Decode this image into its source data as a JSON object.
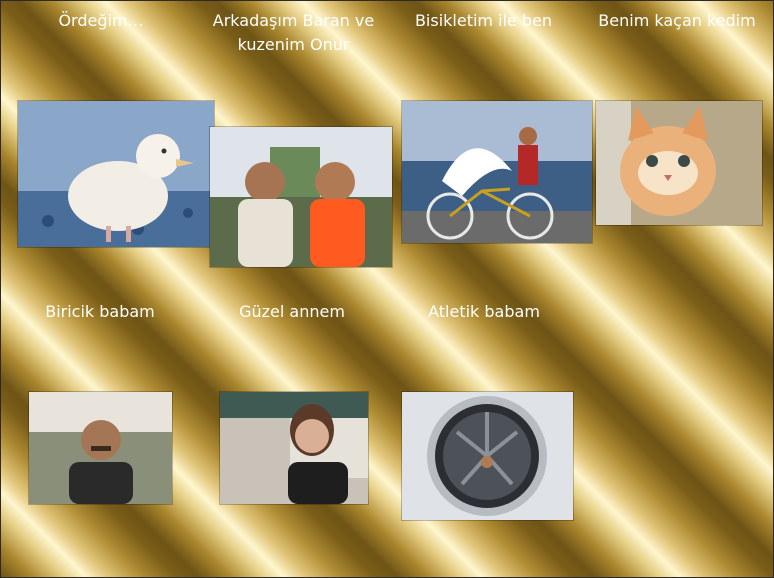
{
  "album": {
    "row1": {
      "captions": [
        "Ördeğim…",
        "Arkadaşım Baran ve kuzenim Onur",
        "Bisikletim ile ben",
        "Benim kaçan kedim"
      ]
    },
    "row2": {
      "captions": [
        "Biricik babam",
        "Güzel annem",
        "Atletik babam"
      ]
    }
  },
  "icons": {
    "duck": "duckling-photo-icon",
    "friends": "two-boys-photo-icon",
    "bike": "bicycle-photo-icon",
    "cat": "kitten-photo-icon",
    "dad": "father-portrait-icon",
    "mom": "mother-portrait-icon",
    "engine": "jet-engine-photo-icon"
  },
  "colors": {
    "caption_text": "#ffffff",
    "gold_dark": "#6e5416",
    "gold_light": "#fff6cf"
  }
}
